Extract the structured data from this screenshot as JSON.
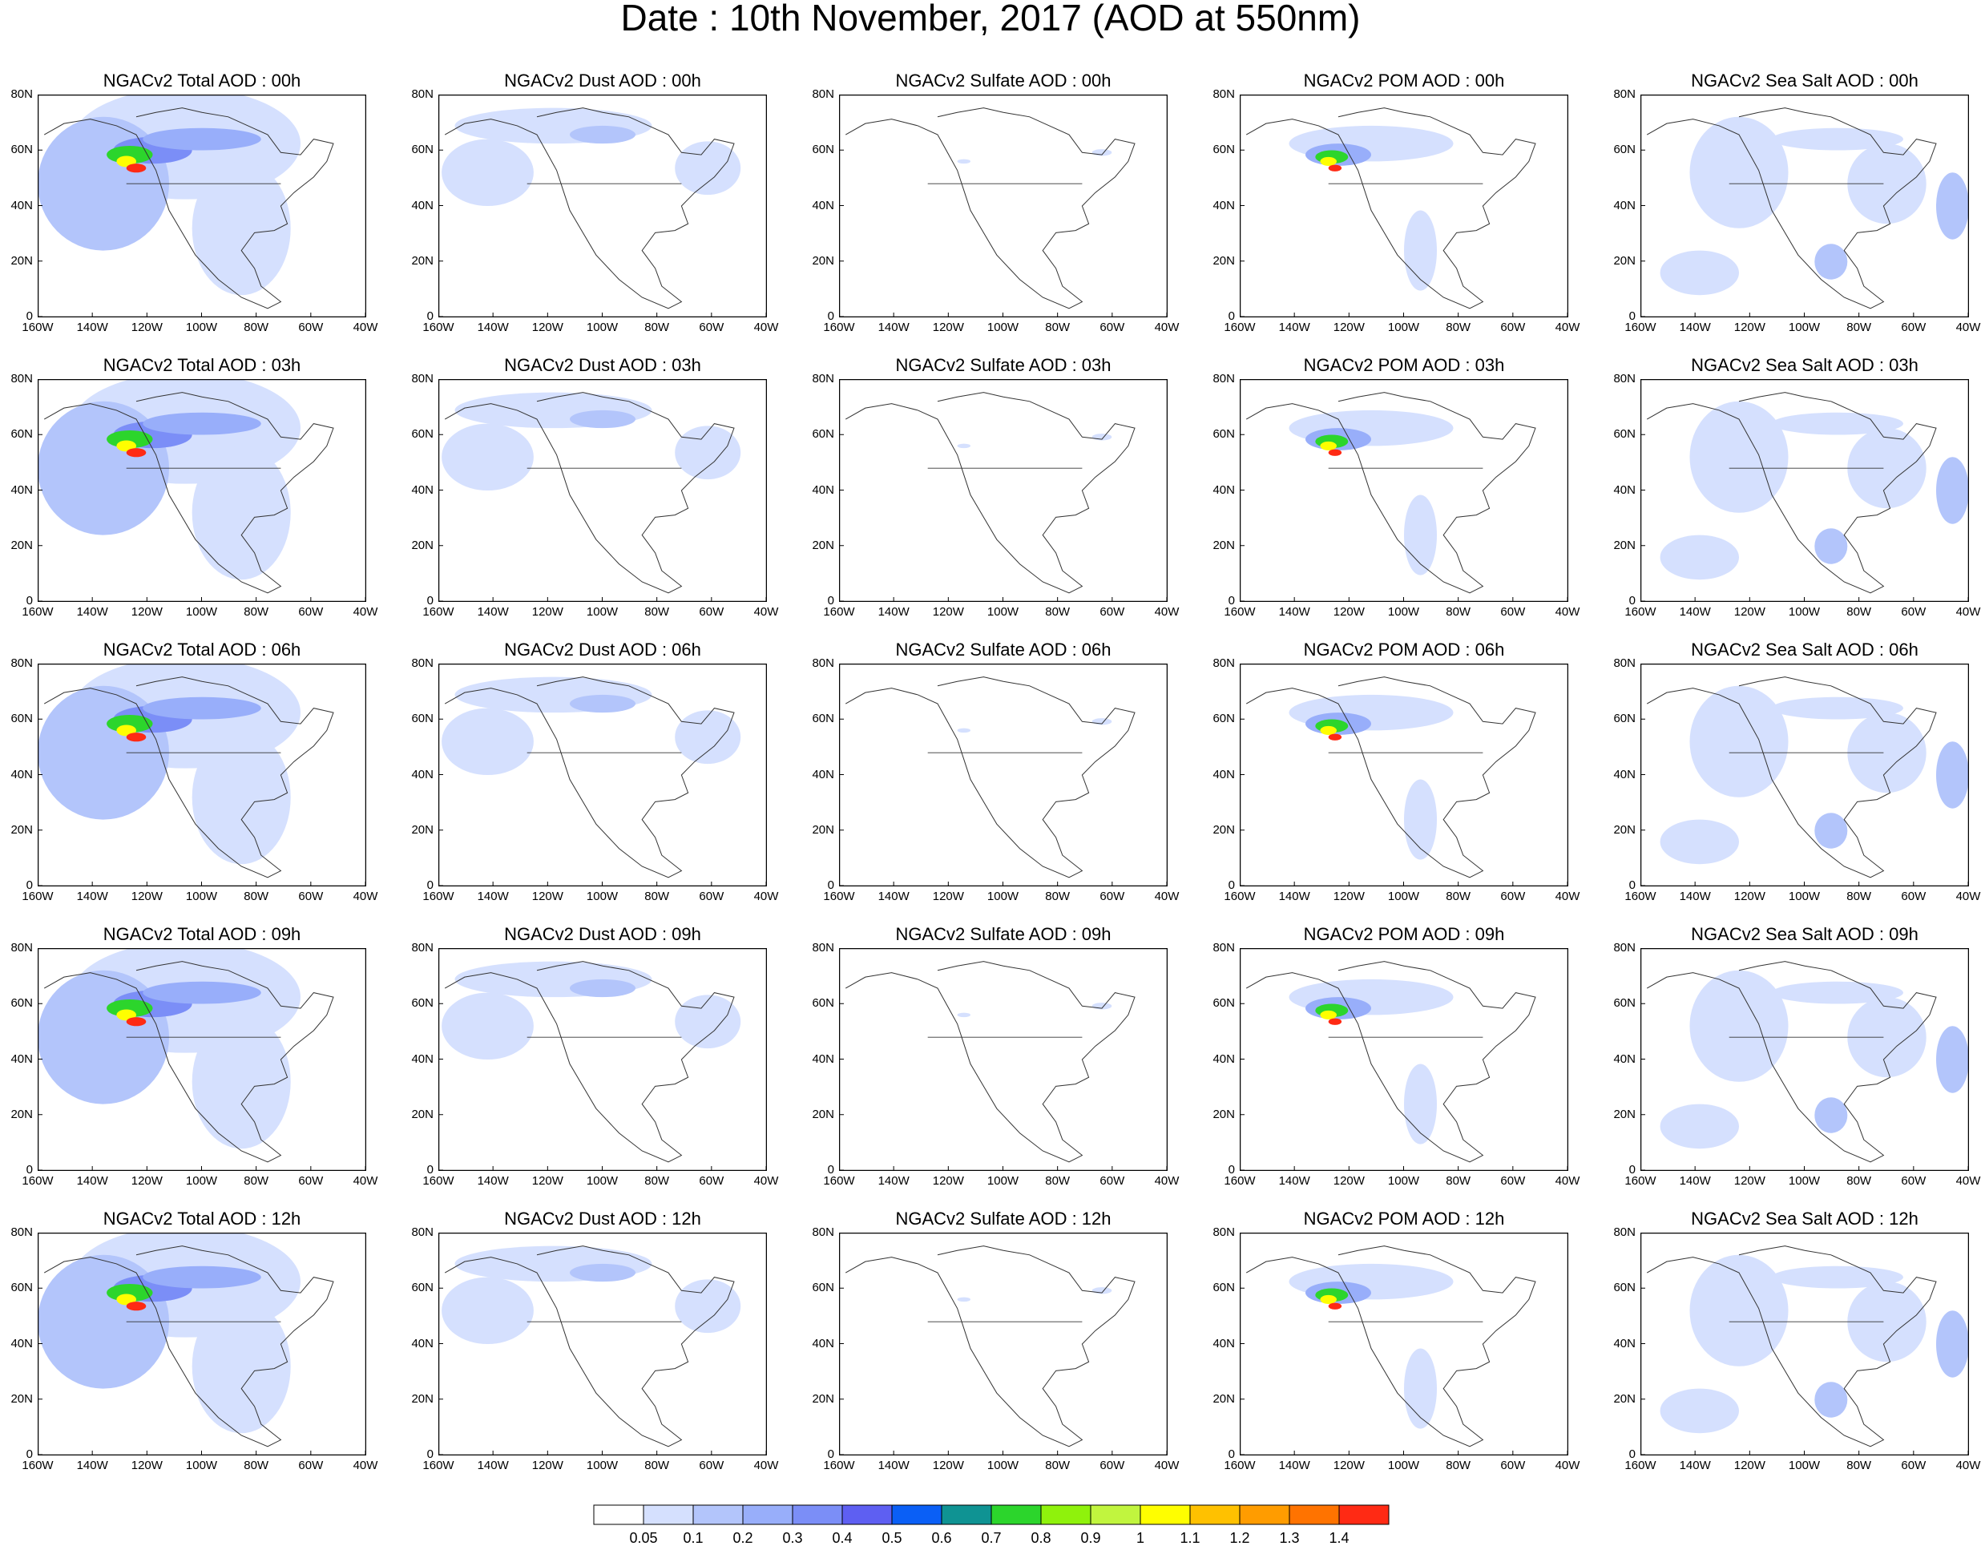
{
  "title": "Date : 10th November, 2017 (AOD at 550nm)",
  "columns": [
    {
      "species": "Total",
      "titles": [
        "NGACv2 Total AOD : 00h",
        "NGACv2 Total AOD : 03h",
        "NGACv2 Total AOD : 06h",
        "NGACv2 Total AOD : 09h",
        "NGACv2 Total AOD  : 12h"
      ]
    },
    {
      "species": "Dust",
      "titles": [
        "NGACv2 Dust AOD : 00h",
        "NGACv2 Dust AOD : 03h",
        "NGACv2 Dust AOD : 06h",
        "NGACv2 Dust AOD : 09h",
        "NGACv2 Dust AOD : 12h"
      ]
    },
    {
      "species": "Sulfate",
      "titles": [
        "NGACv2 Sulfate AOD : 00h",
        "NGACv2 Sulfate AOD : 03h",
        "NGACv2 Sulfate AOD : 06h",
        "NGACv2 Sulfate AOD : 09h",
        "NGACv2 Sulfate AOD : 12h"
      ]
    },
    {
      "species": "POM",
      "titles": [
        "NGACv2 POM AOD : 00h",
        "NGACv2 POM AOD : 03h",
        "NGACv2 POM AOD : 06h",
        "NGACv2 POM AOD : 09h",
        "NGACv2 POM  AOD : 12h"
      ]
    },
    {
      "species": "Sea Salt",
      "titles": [
        "NGACv2 Sea Salt AOD : 00h",
        "NGACv2 Sea Salt AOD : 03h",
        "NGACv2 Sea Salt AOD : 06h",
        "NGACv2 Sea Salt  AOD : 09h",
        "NGACv2 Sea Salt  AOD : 12h"
      ]
    }
  ],
  "lat_labels": [
    "80N",
    "60N",
    "40N",
    "20N",
    "0"
  ],
  "lon_labels": [
    "160W",
    "140W",
    "120W",
    "100W",
    "80W",
    "60W",
    "40W"
  ],
  "colorbar": {
    "colors": [
      "#ffffff",
      "#d5e0fe",
      "#b3c5fb",
      "#98aefa",
      "#7b8ef7",
      "#5e5ff2",
      "#0a5ff6",
      "#0f9393",
      "#2cd52c",
      "#8ff20c",
      "#c1f53e",
      "#fffe00",
      "#ffc100",
      "#ff9c00",
      "#ff7300",
      "#ff2a14"
    ],
    "labels": [
      "0.05",
      "0.1",
      "0.2",
      "0.3",
      "0.4",
      "0.5",
      "0.6",
      "0.7",
      "0.8",
      "0.9",
      "1",
      "1.1",
      "1.2",
      "1.3",
      "1.4"
    ]
  },
  "colors": {
    "coastline": "#333333",
    "frame": "#000000"
  }
}
